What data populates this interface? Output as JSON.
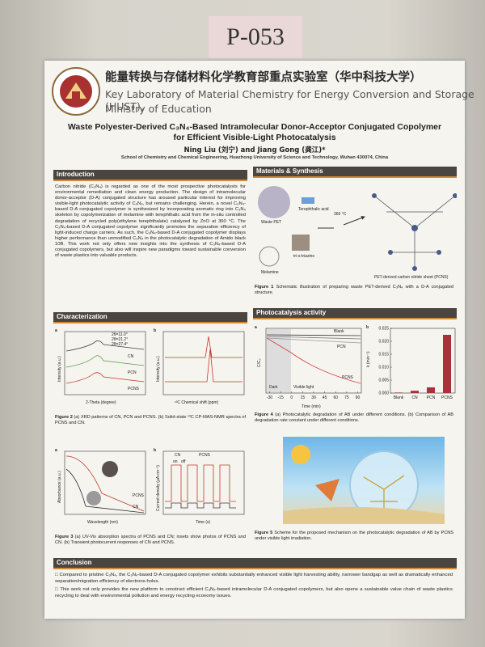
{
  "board_number": "P-053",
  "header": {
    "title_cn": "能量转换与存储材料化学教育部重点实验室（华中科技大学）",
    "title_en_1": "Key Laboratory of Material Chemistry for Energy Conversion and Storage (HUST),",
    "title_en_2": "Ministry of Education"
  },
  "title_1": "Waste Polyester-Derived C₃N₄-Based Intramolecular Donor-Acceptor Conjugated Copolymer",
  "title_2": "for Efficient Visible-Light Photocatalysis",
  "authors": "Ning Liu (刘宁) and Jiang Gong (龚江)*",
  "affiliation": "School of Chemistry and Chemical Engineering, Huazhong University of Science and Technology, Wuhan 430074, China",
  "introduction": {
    "heading": "Introduction",
    "text": "Carbon nitride (C₃N₄) is regarded as one of the most prospective photocatalysts for environmental remediation and clean energy production. The design of intramolecular donor-acceptor (D-A) conjugated structure has aroused particular interest for improving visible-light photocatalytic activity of C₃N₄, but remains challenging. Herein, a novel C₃N₄-based D-A conjugated copolymer is synthesized by incorporating aromatic ring into C₃N₄ skeleton by copolymerization of melamine with terephthalic acid from the in-situ controlled degradation of recycled poly(ethylene terephthalate) catalyzed by ZnO at 360 °C. The C₃N₄-based D-A conjugated copolymer significantly promotes the separation efficiency of light-induced charge carriers. As such, the C₃N₄-based D-A conjugated copolymer displays higher performance than unmodified C₃N₄ in the photocatalytic degradation of Amido black 10B. This work not only offers new insights into the synthesis of C₃N₄-based D-A conjugated copolymers, but also will inspire new paradigms toward sustainable conversion of waste plastics into valuable products."
  },
  "materials": {
    "heading": "Materials & Synthesis",
    "labels": [
      "Waste PET",
      "Terephthalic acid",
      "Melamine",
      "tri-s-triazine",
      "PET-derived carbon nitride sheet (PCNS)",
      "360 °C"
    ],
    "caption_label": "Figure 1",
    "caption": "Schematic illustration of preparing waste PET-derived C₃N₄ with a D-A conjugated structure."
  },
  "characterization": {
    "heading": "Characterization",
    "fig2": {
      "panel_a": "a",
      "panel_b": "b",
      "legend": [
        "2θ=11.0°",
        "2θ=21.2°",
        "2θ=27.4°"
      ],
      "curves": [
        "CN",
        "PCN",
        "PCNS"
      ],
      "xlabel_a": "2-Theta (degree)",
      "ylabel_a": "Intensity (a.u.)",
      "xlabel_b": "¹³C Chemical shift (ppm)",
      "ylabel_b": "Intensity (a.u.)",
      "caption_label": "Figure 2",
      "caption": "(a) XRD patterns of CN, PCN and PCNS. (b) Solid-state ¹³C CP-MAS-NMR spectra of PCNS and CN."
    },
    "fig3": {
      "panel_a": "a",
      "panel_b": "b",
      "curves": [
        "CN",
        "PCNS"
      ],
      "xlabel_a": "Wavelength (nm)",
      "ylabel_a": "Absorbance (a.u.)",
      "xlabel_b": "Time (s)",
      "ylabel_b": "Current density (μA cm⁻²)",
      "on": "on",
      "off": "off",
      "caption_label": "Figure 3",
      "caption": "(a) UV-Vis absorption spectra of PCNS and CN; insets show photos of PCNS and CN. (b) Transient photocurrent responses of CN and PCNS."
    }
  },
  "photocatalysis": {
    "heading": "Photocatalysis activity",
    "fig4": {
      "panel_a": "a",
      "panel_b": "b",
      "legend": [
        "Blank",
        "CN",
        "PCN",
        "PCNS"
      ],
      "dark": "Dark",
      "light": "Visible light",
      "xlabel": "Time (min)",
      "ylabel": "C/C₀",
      "xlim": [
        -35,
        95
      ],
      "xticks": [
        -30,
        -15,
        0,
        15,
        30,
        45,
        60,
        75,
        90
      ],
      "bars": {
        "type": "bar",
        "categories": [
          "Blank",
          "CN",
          "PCN",
          "PCNS"
        ],
        "values": [
          0.0002,
          0.0009,
          0.0022,
          0.0225
        ],
        "color": "#a8323a",
        "ylabel": "k (min⁻¹)",
        "ylim": [
          0,
          0.025
        ],
        "yticks": [
          {
            "value": 0,
            "label": "0.000"
          },
          {
            "value": 0.005,
            "label": "0.005"
          },
          {
            "value": 0.01,
            "label": "0.010"
          },
          {
            "value": 0.015,
            "label": "0.015"
          },
          {
            "value": 0.02,
            "label": "0.020"
          },
          {
            "value": 0.025,
            "label": "0.025"
          }
        ]
      },
      "caption_label": "Figure 4",
      "caption": "(a) Photocatalytic degradation of AB under different conditions. (b) Comparison of AB degradation rate constant under different conditions."
    },
    "fig5": {
      "caption_label": "Figure 5",
      "caption": "Scheme for the proposed mechanism on the photocatalytic degradation of AB by PCNS under visible light irradiation."
    }
  },
  "conclusion": {
    "heading": "Conclusion",
    "bullets": [
      "Compared to pristine C₃N₄, the C₃N₄-based D-A conjugated copolymer exhibits substantially enhanced visible light harvesting ability, narrower bandgap as well as dramatically enhanced separation/migration efficiency of electrons-holes.",
      "This work not only provides the new platform to construct efficient C₃N₄-based intramolecular D-A conjugated copolymers, but also opens a sustainable value chain of waste plastics recycling to deal with environmental pollution and energy recycling economy issues."
    ]
  }
}
